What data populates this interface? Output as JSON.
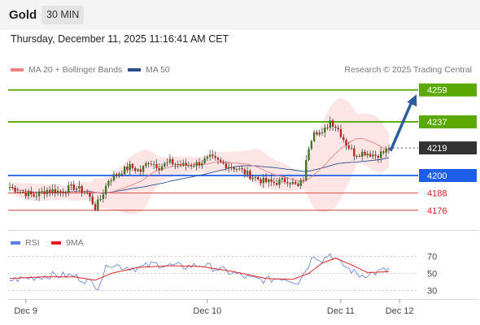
{
  "header": {
    "title": "Gold",
    "timeframe": "30 MIN"
  },
  "datetime": "Thursday, December 11, 2025 11:16:41 AM CET",
  "legend": {
    "ma20": "MA 20 + Bollinger Bands",
    "ma50": "MA 50",
    "credit": "Research © 2025 Trading Central"
  },
  "rsi_legend": {
    "rsi": "RSI",
    "ma9": "9MA"
  },
  "colors": {
    "green_level": "#5aa800",
    "blue_level": "#1f5ee8",
    "red_level": "#cc2222",
    "current": "#333333",
    "ma20": "#f08080",
    "ma50": "#2c4f8c",
    "band_fill": "#fde0e0",
    "arrow": "#2c5fa0",
    "rsi": "#5b7fd6",
    "rsi_ma": "#e02020"
  },
  "chart_data": {
    "type": "candlestick",
    "instrument": "Gold",
    "timeframe": "30 MIN",
    "y_range": [
      4163,
      4265
    ],
    "x_labels": [
      "Dec 9",
      "Dec 10",
      "Dec 11",
      "Dec 12"
    ],
    "levels": [
      {
        "value": 4259,
        "label": "4259",
        "kind": "resistance"
      },
      {
        "value": 4237,
        "label": "4237",
        "kind": "resistance"
      },
      {
        "value": 4219,
        "label": "4219",
        "kind": "current"
      },
      {
        "value": 4200,
        "label": "4200",
        "kind": "pivot"
      },
      {
        "value": 4188,
        "label": "4188",
        "kind": "support"
      },
      {
        "value": 4176,
        "label": "4176",
        "kind": "support"
      }
    ],
    "forecast_arrow": {
      "from": 4217,
      "to": 4256
    },
    "close_keys": [
      [
        0,
        4192
      ],
      [
        4,
        4189
      ],
      [
        9,
        4186
      ],
      [
        14,
        4190
      ],
      [
        19,
        4189
      ],
      [
        24,
        4192
      ],
      [
        29,
        4188
      ],
      [
        32,
        4178
      ],
      [
        34,
        4184
      ],
      [
        37,
        4197
      ],
      [
        41,
        4202
      ],
      [
        45,
        4206
      ],
      [
        49,
        4203
      ],
      [
        52,
        4210
      ],
      [
        56,
        4206
      ],
      [
        60,
        4209
      ],
      [
        65,
        4207
      ],
      [
        70,
        4208
      ],
      [
        75,
        4212
      ],
      [
        80,
        4208
      ],
      [
        85,
        4205
      ],
      [
        90,
        4200
      ],
      [
        95,
        4196
      ],
      [
        99,
        4195
      ],
      [
        104,
        4197
      ],
      [
        108,
        4192
      ],
      [
        110,
        4198
      ],
      [
        112,
        4220
      ],
      [
        114,
        4232
      ],
      [
        117,
        4228
      ],
      [
        120,
        4238
      ],
      [
        123,
        4232
      ],
      [
        126,
        4222
      ],
      [
        129,
        4215
      ],
      [
        133,
        4216
      ],
      [
        137,
        4214
      ],
      [
        140,
        4216
      ],
      [
        142,
        4219
      ]
    ],
    "rsi": {
      "y_range": [
        20,
        80
      ],
      "ticks": [
        70,
        50,
        30
      ],
      "ma_period": 9,
      "rsi_keys": [
        [
          0,
          42
        ],
        [
          8,
          45
        ],
        [
          16,
          48
        ],
        [
          24,
          47
        ],
        [
          30,
          40
        ],
        [
          33,
          35
        ],
        [
          37,
          62
        ],
        [
          42,
          58
        ],
        [
          48,
          56
        ],
        [
          54,
          61
        ],
        [
          60,
          59
        ],
        [
          66,
          58
        ],
        [
          72,
          60
        ],
        [
          78,
          55
        ],
        [
          84,
          50
        ],
        [
          90,
          44
        ],
        [
          96,
          42
        ],
        [
          102,
          45
        ],
        [
          108,
          40
        ],
        [
          111,
          55
        ],
        [
          114,
          72
        ],
        [
          117,
          66
        ],
        [
          120,
          73
        ],
        [
          123,
          64
        ],
        [
          127,
          55
        ],
        [
          131,
          48
        ],
        [
          136,
          50
        ],
        [
          142,
          55
        ]
      ],
      "ma_keys": [
        [
          0,
          44
        ],
        [
          12,
          46
        ],
        [
          24,
          46
        ],
        [
          32,
          42
        ],
        [
          38,
          50
        ],
        [
          48,
          57
        ],
        [
          60,
          59
        ],
        [
          72,
          58
        ],
        [
          84,
          52
        ],
        [
          96,
          44
        ],
        [
          106,
          43
        ],
        [
          112,
          50
        ],
        [
          117,
          62
        ],
        [
          122,
          68
        ],
        [
          128,
          60
        ],
        [
          134,
          51
        ],
        [
          142,
          52
        ]
      ]
    }
  }
}
